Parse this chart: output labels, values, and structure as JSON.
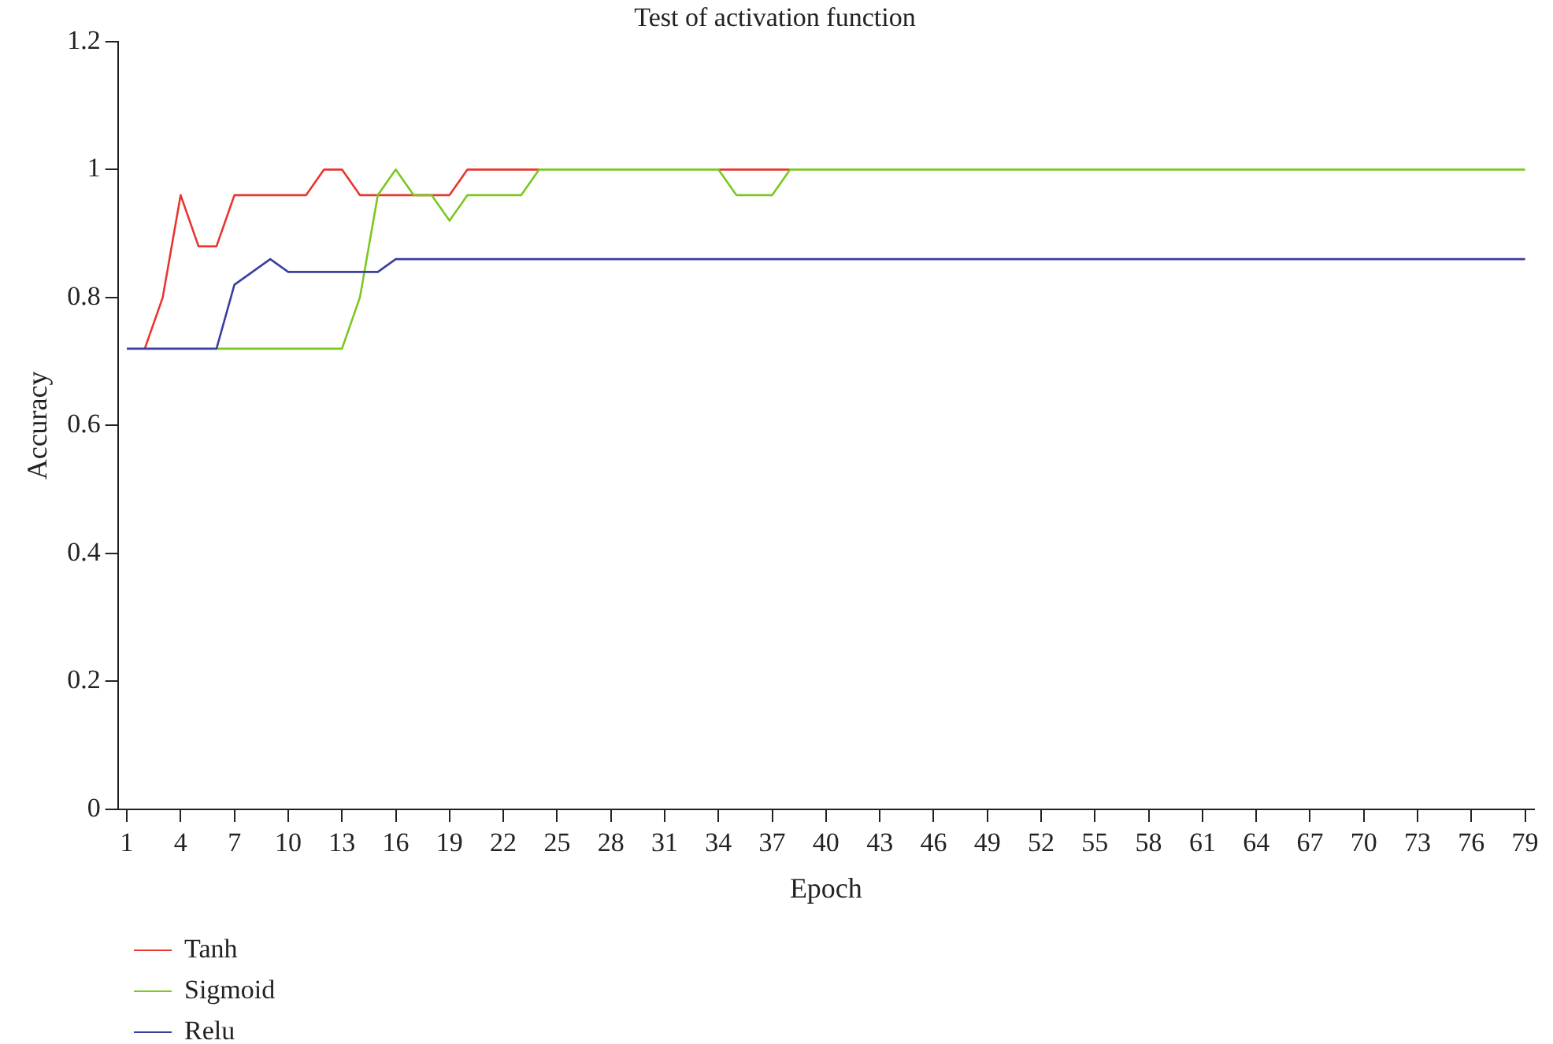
{
  "chart_data": {
    "type": "line",
    "title": "Test of activation function",
    "xlabel": "Epoch",
    "ylabel": "Accuracy",
    "categories": [
      "1",
      null,
      null,
      "4",
      null,
      null,
      "7",
      null,
      null,
      "10",
      null,
      null,
      "13",
      null,
      null,
      "16",
      null,
      null,
      "19",
      null,
      null,
      "22",
      null,
      null,
      "25",
      null,
      null,
      "28",
      null,
      null,
      "31",
      null,
      null,
      "34",
      null,
      null,
      "37",
      null,
      null,
      "40",
      null,
      null,
      "43",
      null,
      null,
      "46",
      null,
      null,
      "49",
      null,
      null,
      "52",
      null,
      null,
      "55",
      null,
      null,
      "58",
      null,
      null,
      "61",
      null,
      null,
      "64",
      null,
      null,
      "67",
      null,
      null,
      "70",
      null,
      null,
      "73",
      null,
      null,
      "76",
      null,
      null,
      "79"
    ],
    "series": [
      {
        "name": "Tanh",
        "color": "#e8352e",
        "values": [
          null,
          0.72,
          0.8,
          0.96,
          0.88,
          0.88,
          0.96,
          0.96,
          0.96,
          0.96,
          0.96,
          1,
          1,
          0.96,
          0.96,
          0.96,
          0.96,
          0.96,
          0.96,
          1,
          1,
          1,
          1,
          1,
          null,
          null,
          null,
          null,
          null,
          null,
          null,
          null,
          null,
          1,
          1,
          1,
          1,
          1,
          null,
          null,
          null,
          null,
          null,
          null,
          null,
          null,
          null,
          null,
          null,
          null,
          null,
          null,
          null,
          null,
          null,
          null,
          null,
          null,
          null,
          null,
          null,
          null,
          null,
          null,
          null,
          null,
          null,
          null,
          null,
          null,
          null,
          null,
          null,
          null,
          null,
          null,
          null,
          null,
          null
        ]
      },
      {
        "name": "Sigmoid",
        "color": "#7ac81e",
        "values": [
          null,
          null,
          null,
          null,
          null,
          0.72,
          0.72,
          0.72,
          0.72,
          0.72,
          0.72,
          0.72,
          0.72,
          0.8,
          0.96,
          1,
          0.96,
          0.96,
          0.92,
          0.96,
          0.96,
          0.96,
          0.96,
          1,
          1,
          1,
          1,
          1,
          1,
          1,
          1,
          1,
          1,
          1,
          0.96,
          0.96,
          0.96,
          1,
          1,
          1,
          1,
          1,
          1,
          1,
          1,
          1,
          1,
          1,
          1,
          1,
          1,
          1,
          1,
          1,
          1,
          1,
          1,
          1,
          1,
          1,
          1,
          1,
          1,
          1,
          1,
          1,
          1,
          1,
          1,
          1,
          1,
          1,
          1,
          1,
          1,
          1,
          1,
          1,
          1
        ]
      },
      {
        "name": "Relu",
        "color": "#3a3fa0",
        "values": [
          0.72,
          0.72,
          0.72,
          0.72,
          0.72,
          0.72,
          0.82,
          0.84,
          0.86,
          0.84,
          0.84,
          0.84,
          0.84,
          0.84,
          0.84,
          0.86,
          0.86,
          0.86,
          0.86,
          0.86,
          0.86,
          0.86,
          0.86,
          0.86,
          0.86,
          0.86,
          0.86,
          0.86,
          0.86,
          0.86,
          0.86,
          0.86,
          0.86,
          0.86,
          0.86,
          0.86,
          0.86,
          0.86,
          0.86,
          0.86,
          0.86,
          0.86,
          0.86,
          0.86,
          0.86,
          0.86,
          0.86,
          0.86,
          0.86,
          0.86,
          0.86,
          0.86,
          0.86,
          0.86,
          0.86,
          0.86,
          0.86,
          0.86,
          0.86,
          0.86,
          0.86,
          0.86,
          0.86,
          0.86,
          0.86,
          0.86,
          0.86,
          0.86,
          0.86,
          0.86,
          0.86,
          0.86,
          0.86,
          0.86,
          0.86,
          0.86,
          0.86,
          0.86,
          0.86
        ]
      }
    ],
    "ylim": [
      0,
      1.2
    ],
    "yticks": [
      0,
      0.2,
      0.4,
      0.6,
      0.8,
      1,
      1.2
    ],
    "grid": false,
    "legend": "bottom left",
    "marker": "none",
    "line_style": "solid"
  }
}
